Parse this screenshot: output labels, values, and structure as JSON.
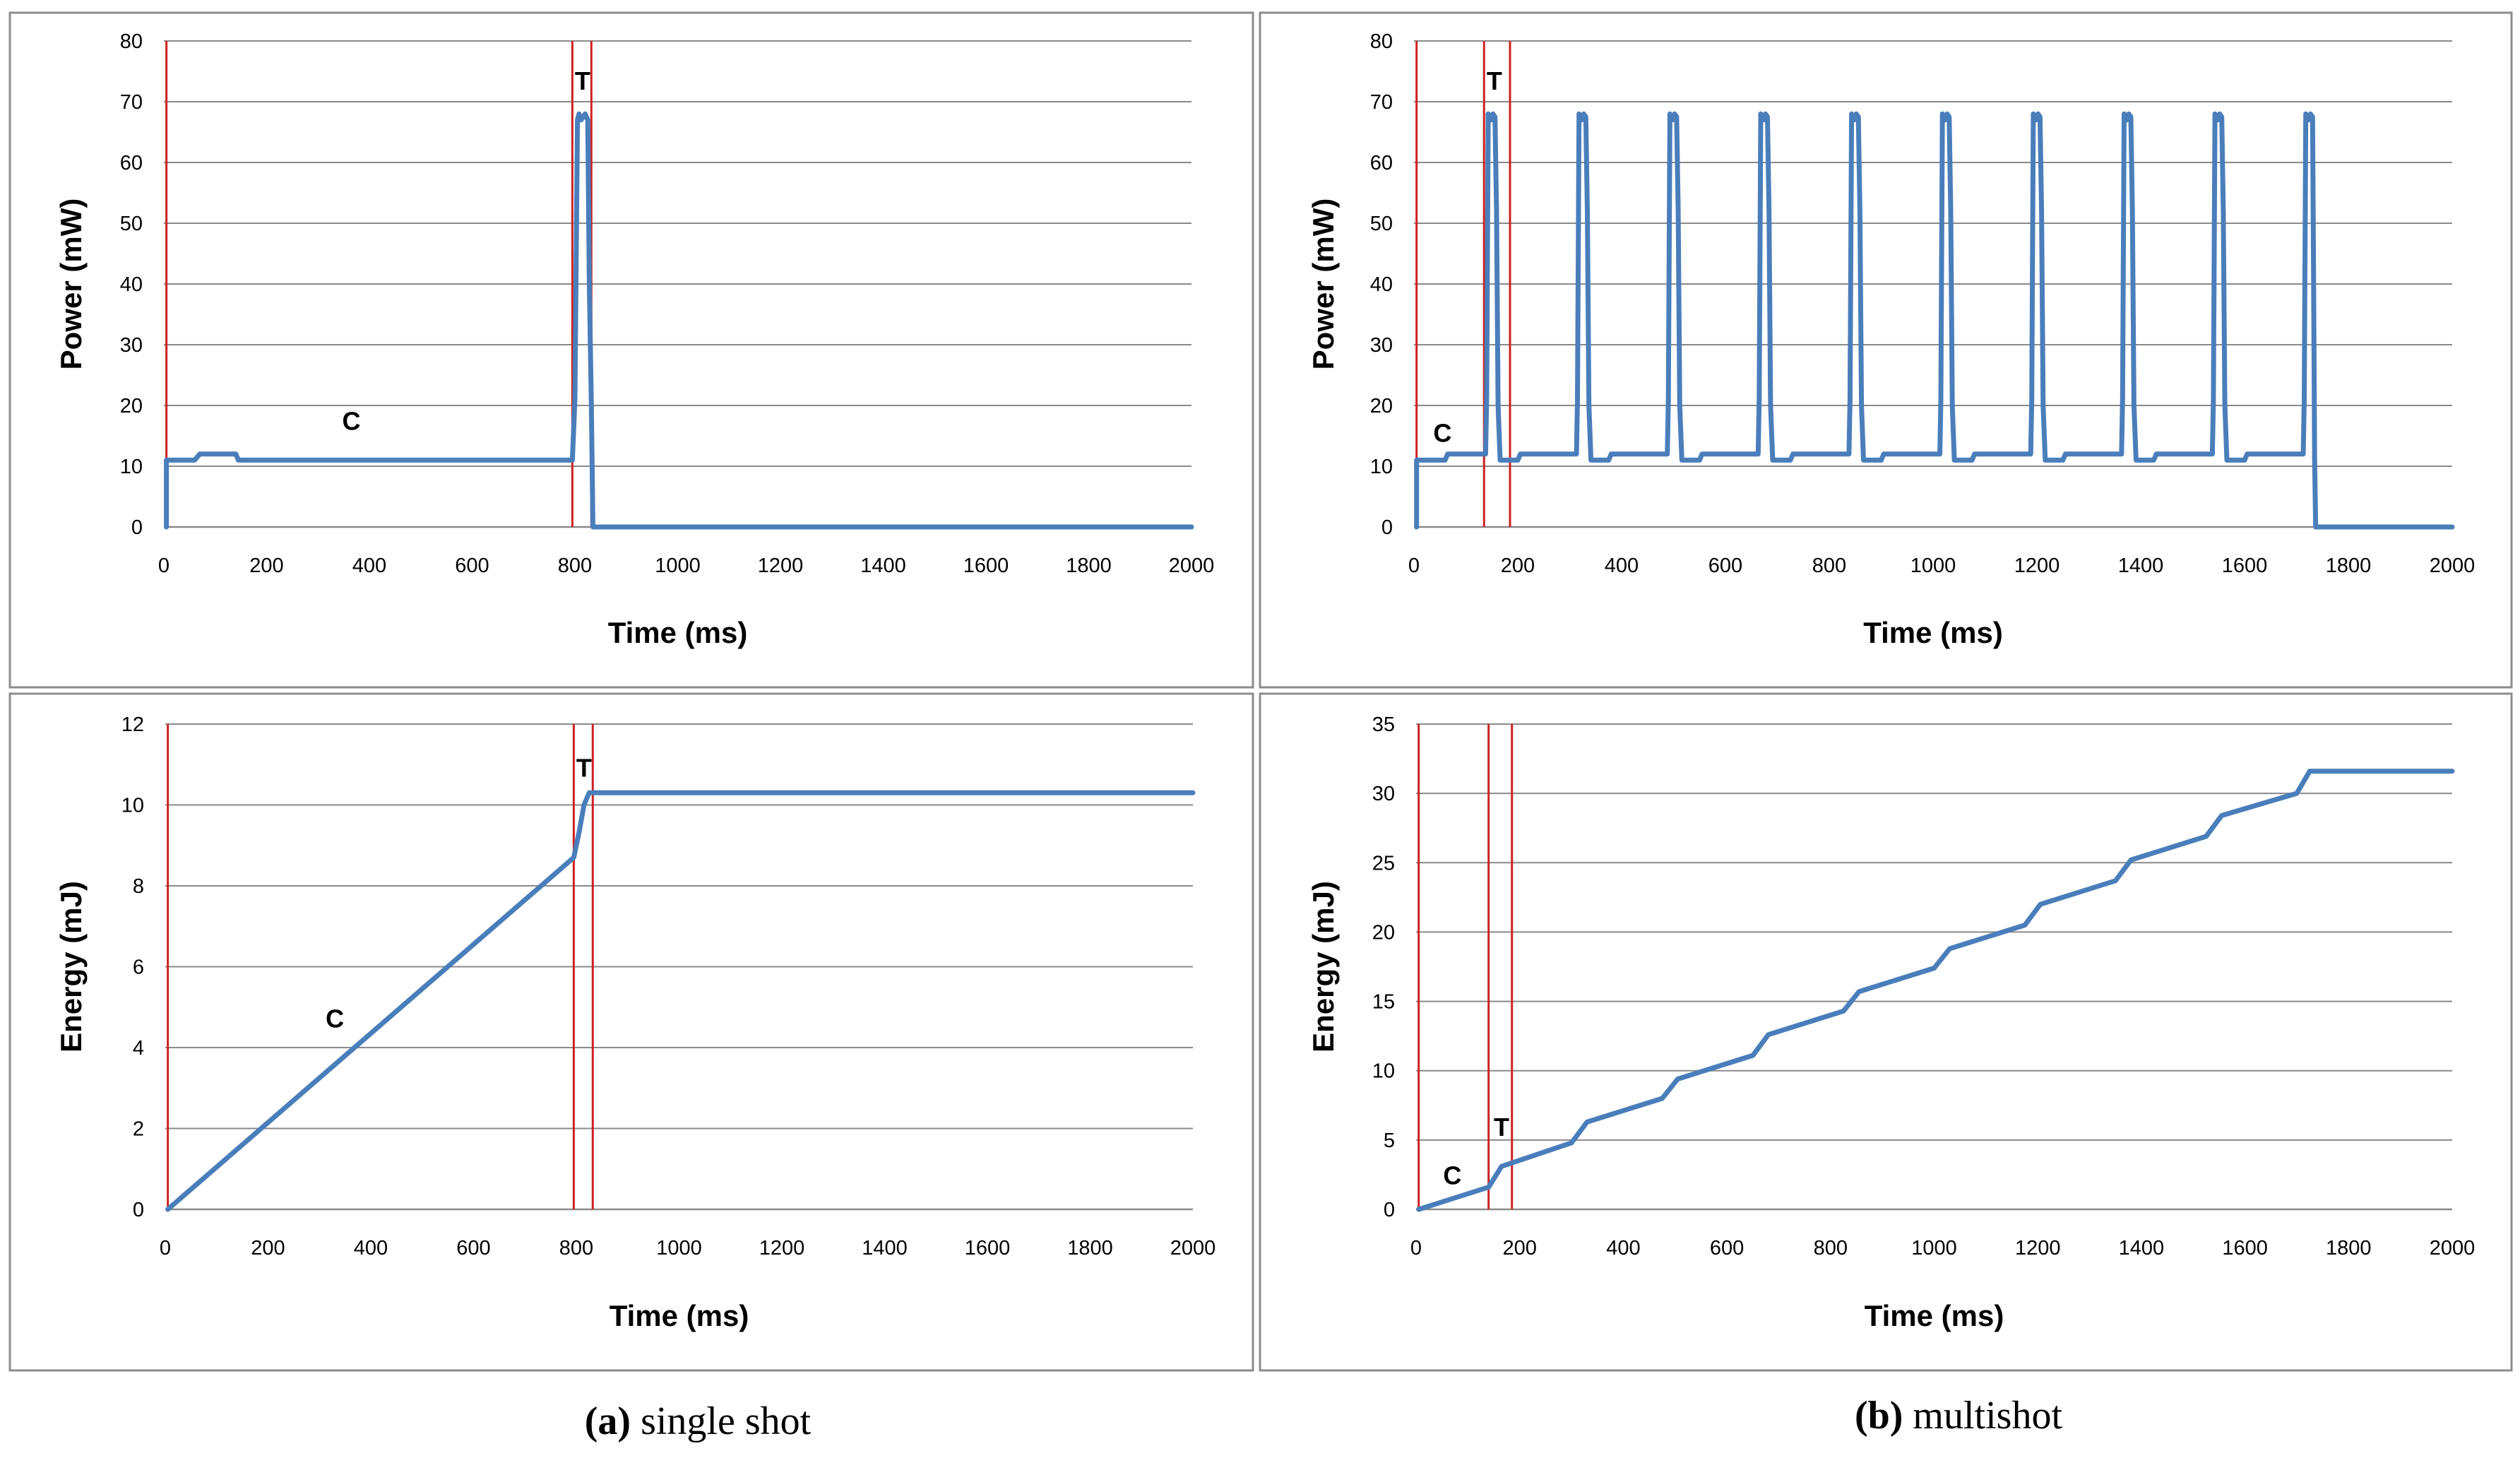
{
  "figure": {
    "captions": [
      {
        "label": "(a)",
        "text": "single shot"
      },
      {
        "label": "(b)",
        "text": "multishot"
      }
    ]
  },
  "chart_data": [
    {
      "id": "a-power",
      "type": "line",
      "panel": "top-left",
      "xlabel": "Time (ms)",
      "ylabel": "Power (mW)",
      "xlim": [
        0,
        2000
      ],
      "ylim": [
        0,
        80
      ],
      "xticks": [
        0,
        200,
        400,
        600,
        800,
        1000,
        1200,
        1400,
        1600,
        1800,
        2000
      ],
      "yticks": [
        0,
        10,
        20,
        30,
        40,
        50,
        60,
        70,
        80
      ],
      "grid": true,
      "markers": [
        5,
        795,
        832
      ],
      "annotations": [
        {
          "text": "C",
          "x": 365,
          "y": 16
        },
        {
          "text": "T",
          "x": 815,
          "y": 72
        }
      ],
      "series": [
        {
          "name": "Power",
          "color": "#4a7ebb",
          "points": [
            [
              5,
              0
            ],
            [
              5,
              11
            ],
            [
              60,
              11
            ],
            [
              70,
              12
            ],
            [
              140,
              12
            ],
            [
              145,
              11
            ],
            [
              795,
              11
            ],
            [
              800,
              21
            ],
            [
              805,
              67
            ],
            [
              808,
              68
            ],
            [
              812,
              67
            ],
            [
              820,
              68
            ],
            [
              825,
              67
            ],
            [
              828,
              40
            ],
            [
              832,
              20
            ],
            [
              835,
              0
            ],
            [
              2000,
              0
            ]
          ]
        }
      ]
    },
    {
      "id": "b-power",
      "type": "line",
      "panel": "top-right",
      "xlabel": "Time (ms)",
      "ylabel": "Power (mW)",
      "xlim": [
        0,
        2000
      ],
      "ylim": [
        0,
        80
      ],
      "xticks": [
        0,
        200,
        400,
        600,
        800,
        1000,
        1200,
        1400,
        1600,
        1800,
        2000
      ],
      "yticks": [
        0,
        10,
        20,
        30,
        40,
        50,
        60,
        70,
        80
      ],
      "grid": true,
      "markers": [
        5,
        135,
        185
      ],
      "pulse_starts": [
        140,
        315,
        490,
        665,
        840,
        1015,
        1190,
        1365,
        1540,
        1715
      ],
      "last_pulse_end": 1735,
      "pulse_high_mW": 68,
      "baseline_mW": 11,
      "annotations": [
        {
          "text": "C",
          "x": 55,
          "y": 14
        },
        {
          "text": "T",
          "x": 155,
          "y": 72
        }
      ],
      "series": [
        {
          "name": "Power",
          "color": "#4a7ebb",
          "points": []
        }
      ]
    },
    {
      "id": "a-energy",
      "type": "line",
      "panel": "bottom-left",
      "xlabel": "Time (ms)",
      "ylabel": "Energy (mJ)",
      "xlim": [
        0,
        2000
      ],
      "ylim": [
        0,
        12
      ],
      "xticks": [
        0,
        200,
        400,
        600,
        800,
        1000,
        1200,
        1400,
        1600,
        1800,
        2000
      ],
      "yticks": [
        0,
        2,
        4,
        6,
        8,
        10,
        12
      ],
      "grid": true,
      "markers": [
        5,
        795,
        832
      ],
      "annotations": [
        {
          "text": "C",
          "x": 330,
          "y": 4.5
        },
        {
          "text": "T",
          "x": 815,
          "y": 10.7
        }
      ],
      "series": [
        {
          "name": "Energy",
          "color": "#4a7ebb",
          "points": [
            [
              5,
              0
            ],
            [
              795,
              8.7
            ],
            [
              805,
              9.3
            ],
            [
              815,
              10.0
            ],
            [
              825,
              10.3
            ],
            [
              2000,
              10.3
            ]
          ]
        }
      ]
    },
    {
      "id": "b-energy",
      "type": "line",
      "panel": "bottom-right",
      "xlabel": "Time (ms)",
      "ylabel": "Energy (mJ)",
      "xlim": [
        0,
        2000
      ],
      "ylim": [
        0,
        35
      ],
      "xticks": [
        0,
        200,
        400,
        600,
        800,
        1000,
        1200,
        1400,
        1600,
        1800,
        2000
      ],
      "yticks": [
        0,
        5,
        10,
        15,
        20,
        25,
        30,
        35
      ],
      "grid": true,
      "markers": [
        5,
        140,
        185
      ],
      "annotations": [
        {
          "text": "C",
          "x": 70,
          "y": 1.8
        },
        {
          "text": "T",
          "x": 165,
          "y": 5.3
        }
      ],
      "series": [
        {
          "name": "Energy",
          "color": "#4a7ebb",
          "points": [
            [
              5,
              0
            ],
            [
              140,
              1.6
            ],
            [
              165,
              3.1
            ],
            [
              300,
              4.8
            ],
            [
              330,
              6.3
            ],
            [
              475,
              8.0
            ],
            [
              505,
              9.4
            ],
            [
              650,
              11.1
            ],
            [
              680,
              12.6
            ],
            [
              825,
              14.3
            ],
            [
              855,
              15.7
            ],
            [
              1000,
              17.4
            ],
            [
              1030,
              18.8
            ],
            [
              1175,
              20.5
            ],
            [
              1205,
              22.0
            ],
            [
              1350,
              23.7
            ],
            [
              1380,
              25.2
            ],
            [
              1525,
              26.9
            ],
            [
              1555,
              28.4
            ],
            [
              1700,
              30.0
            ],
            [
              1725,
              31.6
            ],
            [
              2000,
              31.6
            ]
          ]
        }
      ]
    }
  ]
}
